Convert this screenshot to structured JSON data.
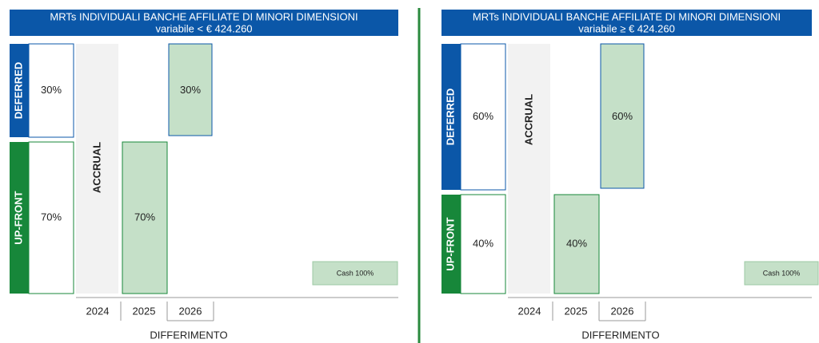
{
  "panels": [
    {
      "title": "MRTs INDIVIDUALI BANCHE AFFILIATE DI MINORI DIMENSIONI",
      "subtitle": "variabile < € 424.260",
      "deferred": {
        "label": "DEFERRED",
        "value": "30%"
      },
      "upfront": {
        "label": "UP-FRONT",
        "value": "70%"
      },
      "accrual": "ACCRUAL",
      "payouts": [
        "70%",
        "30%"
      ],
      "cash": "Cash 100%",
      "years": [
        "2024",
        "2025",
        "2026"
      ],
      "axis_label": "DIFFERIMENTO"
    },
    {
      "title": "MRTs INDIVIDUALI BANCHE AFFILIATE DI MINORI DIMENSIONI",
      "subtitle": "variabile ≥ € 424.260",
      "deferred": {
        "label": "DEFERRED",
        "value": "60%"
      },
      "upfront": {
        "label": "UP-FRONT",
        "value": "40%"
      },
      "accrual": "ACCRUAL",
      "payouts": [
        "40%",
        "60%"
      ],
      "cash": "Cash 100%",
      "years": [
        "2024",
        "2025",
        "2026"
      ],
      "axis_label": "DIFFERIMENTO"
    }
  ]
}
